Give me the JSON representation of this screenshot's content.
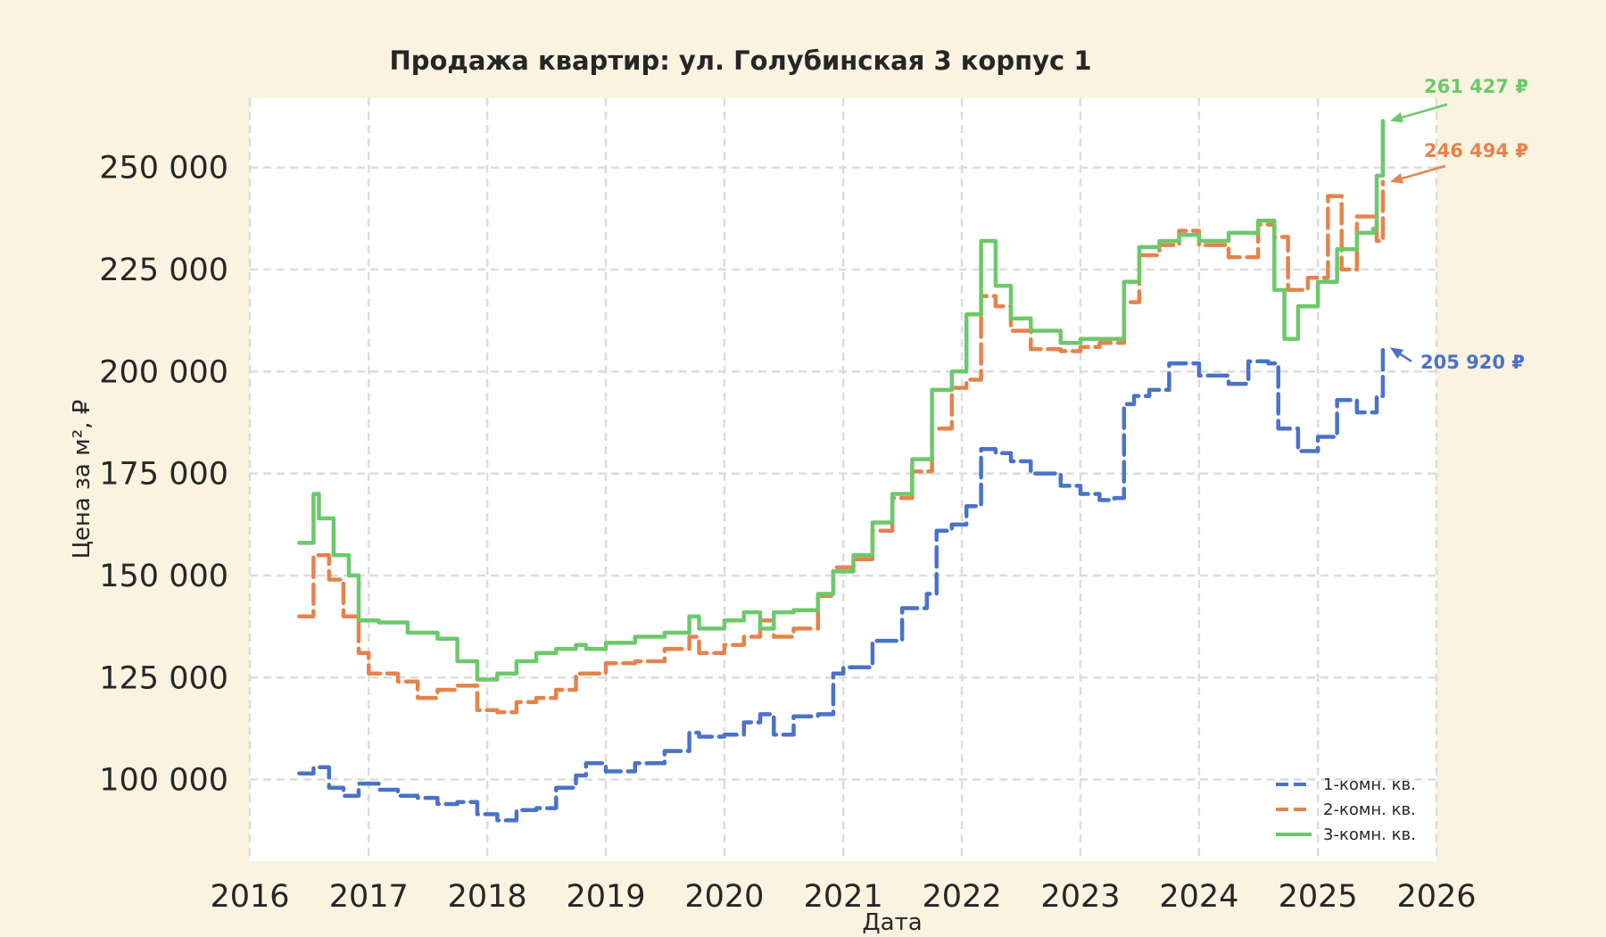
{
  "chart_data": {
    "type": "line",
    "title": "Продажа квартир: ул. Голубинская 3 корпус 1",
    "xlabel": "Дата",
    "ylabel": "Цена за м², ₽",
    "xlim": [
      "2016-01-01",
      "2026-01-01"
    ],
    "ylim": [
      80000,
      267000
    ],
    "x_ticks": [
      "2016",
      "2017",
      "2018",
      "2019",
      "2020",
      "2021",
      "2022",
      "2023",
      "2024",
      "2025",
      "2026"
    ],
    "y_ticks": [
      "100 000",
      "125 000",
      "150 000",
      "175 000",
      "200 000",
      "225 000",
      "250 000"
    ],
    "grid": true,
    "legend_position": "lower-right",
    "colors": {
      "background": "#faf3e0",
      "plot": "#ffffff",
      "s1": "#4a72c9",
      "s2": "#e5834d",
      "s3": "#6cc96b"
    },
    "series": [
      {
        "name": "1-комн. кв.",
        "style": "dashed",
        "x": [
          "2016-06-01",
          "2016-07-15",
          "2016-09-01",
          "2016-10-15",
          "2016-12-01",
          "2017-02-01",
          "2017-04-01",
          "2017-06-01",
          "2017-08-01",
          "2017-10-01",
          "2017-12-01",
          "2018-02-01",
          "2018-04-01",
          "2018-06-01",
          "2018-08-01",
          "2018-10-01",
          "2018-11-01",
          "2019-01-01",
          "2019-04-01",
          "2019-07-01",
          "2019-09-15",
          "2019-10-15",
          "2020-01-01",
          "2020-03-01",
          "2020-04-20",
          "2020-06-01",
          "2020-08-01",
          "2020-10-15",
          "2020-12-01",
          "2021-01-01",
          "2021-04-01",
          "2021-07-01",
          "2021-09-15",
          "2021-10-15",
          "2021-12-01",
          "2022-01-15",
          "2022-03-01",
          "2022-04-15",
          "2022-06-01",
          "2022-08-01",
          "2022-11-01",
          "2023-01-01",
          "2023-03-01",
          "2023-04-15",
          "2023-05-15",
          "2023-06-15",
          "2023-08-01",
          "2023-10-01",
          "2024-01-01",
          "2024-04-01",
          "2024-06-01",
          "2024-08-01",
          "2024-09-01",
          "2024-11-01",
          "2025-01-01",
          "2025-03-01",
          "2025-05-01",
          "2025-07-01",
          "2025-07-20"
        ],
        "values": [
          101500,
          103000,
          98000,
          96000,
          99000,
          97500,
          96000,
          95500,
          94000,
          94500,
          91500,
          90000,
          92500,
          93000,
          98000,
          101000,
          104000,
          102000,
          104000,
          107000,
          111500,
          110500,
          111000,
          114000,
          116000,
          111000,
          115500,
          116000,
          126000,
          127500,
          134000,
          142000,
          145500,
          161000,
          162500,
          167000,
          181000,
          180000,
          178000,
          175000,
          172000,
          170000,
          168500,
          169000,
          192000,
          194000,
          195500,
          202000,
          199000,
          197000,
          202500,
          202000,
          186000,
          180500,
          184000,
          193000,
          190000,
          194000,
          205920
        ]
      },
      {
        "name": "2-комн. кв.",
        "style": "dashed",
        "x": [
          "2016-06-01",
          "2016-07-15",
          "2016-09-01",
          "2016-10-15",
          "2016-12-01",
          "2017-01-01",
          "2017-04-01",
          "2017-06-01",
          "2017-08-01",
          "2017-10-01",
          "2017-12-01",
          "2018-02-01",
          "2018-04-01",
          "2018-06-01",
          "2018-08-01",
          "2018-10-01",
          "2019-01-01",
          "2019-04-01",
          "2019-07-01",
          "2019-09-15",
          "2019-10-15",
          "2020-01-01",
          "2020-03-01",
          "2020-04-20",
          "2020-06-01",
          "2020-08-01",
          "2020-10-15",
          "2020-12-01",
          "2021-02-01",
          "2021-04-01",
          "2021-06-01",
          "2021-08-01",
          "2021-10-01",
          "2021-12-01",
          "2022-01-15",
          "2022-03-01",
          "2022-04-15",
          "2022-06-01",
          "2022-08-01",
          "2022-11-01",
          "2023-01-01",
          "2023-03-01",
          "2023-05-15",
          "2023-07-01",
          "2023-09-01",
          "2023-11-01",
          "2024-01-01",
          "2024-04-01",
          "2024-07-01",
          "2024-08-20",
          "2024-10-01",
          "2024-12-01",
          "2025-02-01",
          "2025-03-15",
          "2025-05-01",
          "2025-07-01",
          "2025-07-20"
        ],
        "values": [
          140000,
          155000,
          149000,
          140000,
          131000,
          126000,
          124000,
          120000,
          122000,
          123000,
          117000,
          116500,
          119000,
          120000,
          122000,
          126000,
          128500,
          129000,
          132000,
          135000,
          131000,
          133000,
          135000,
          139000,
          135000,
          137000,
          145000,
          152000,
          154000,
          161000,
          169000,
          175500,
          186000,
          196000,
          198000,
          218500,
          216000,
          210000,
          205500,
          205000,
          206000,
          207000,
          217000,
          228500,
          231000,
          234500,
          231000,
          228000,
          236000,
          233000,
          220000,
          223000,
          243000,
          225000,
          238000,
          232000,
          246494
        ]
      },
      {
        "name": "3-комн. кв.",
        "style": "solid",
        "x": [
          "2016-06-01",
          "2016-07-15",
          "2016-08-01",
          "2016-09-15",
          "2016-11-01",
          "2016-12-01",
          "2017-02-01",
          "2017-05-01",
          "2017-08-01",
          "2017-10-01",
          "2017-12-01",
          "2018-02-01",
          "2018-04-01",
          "2018-06-01",
          "2018-08-01",
          "2018-10-01",
          "2018-11-01",
          "2019-01-01",
          "2019-04-01",
          "2019-07-01",
          "2019-09-15",
          "2019-10-15",
          "2020-01-01",
          "2020-03-01",
          "2020-04-20",
          "2020-06-01",
          "2020-08-01",
          "2020-10-15",
          "2020-12-01",
          "2021-02-01",
          "2021-04-01",
          "2021-06-01",
          "2021-08-01",
          "2021-10-01",
          "2021-12-01",
          "2022-01-15",
          "2022-03-01",
          "2022-04-15",
          "2022-06-01",
          "2022-08-01",
          "2022-11-01",
          "2023-01-01",
          "2023-03-01",
          "2023-05-15",
          "2023-07-01",
          "2023-09-01",
          "2023-11-01",
          "2024-01-01",
          "2024-04-01",
          "2024-07-01",
          "2024-08-20",
          "2024-09-20",
          "2024-11-01",
          "2025-01-01",
          "2025-03-01",
          "2025-05-01",
          "2025-06-20",
          "2025-07-01",
          "2025-07-20"
        ],
        "values": [
          158000,
          170000,
          164000,
          155000,
          150000,
          139000,
          138500,
          136000,
          134500,
          129000,
          124500,
          126000,
          129000,
          131000,
          132000,
          133000,
          132000,
          133500,
          135000,
          136000,
          140000,
          137000,
          139000,
          141000,
          137000,
          141000,
          141500,
          145500,
          151000,
          155000,
          163000,
          170000,
          178500,
          195500,
          200000,
          214000,
          232000,
          221000,
          213000,
          210000,
          207000,
          208000,
          208000,
          222000,
          230500,
          232000,
          233500,
          232000,
          234000,
          237000,
          220000,
          208000,
          216000,
          222000,
          230000,
          234000,
          235000,
          248000,
          261427
        ]
      }
    ],
    "annotations": [
      {
        "series": "3-комн. кв.",
        "text": "261 427 ₽"
      },
      {
        "series": "2-комн. кв.",
        "text": "246 494 ₽"
      },
      {
        "series": "1-комн. кв.",
        "text": "205 920 ₽"
      }
    ]
  }
}
